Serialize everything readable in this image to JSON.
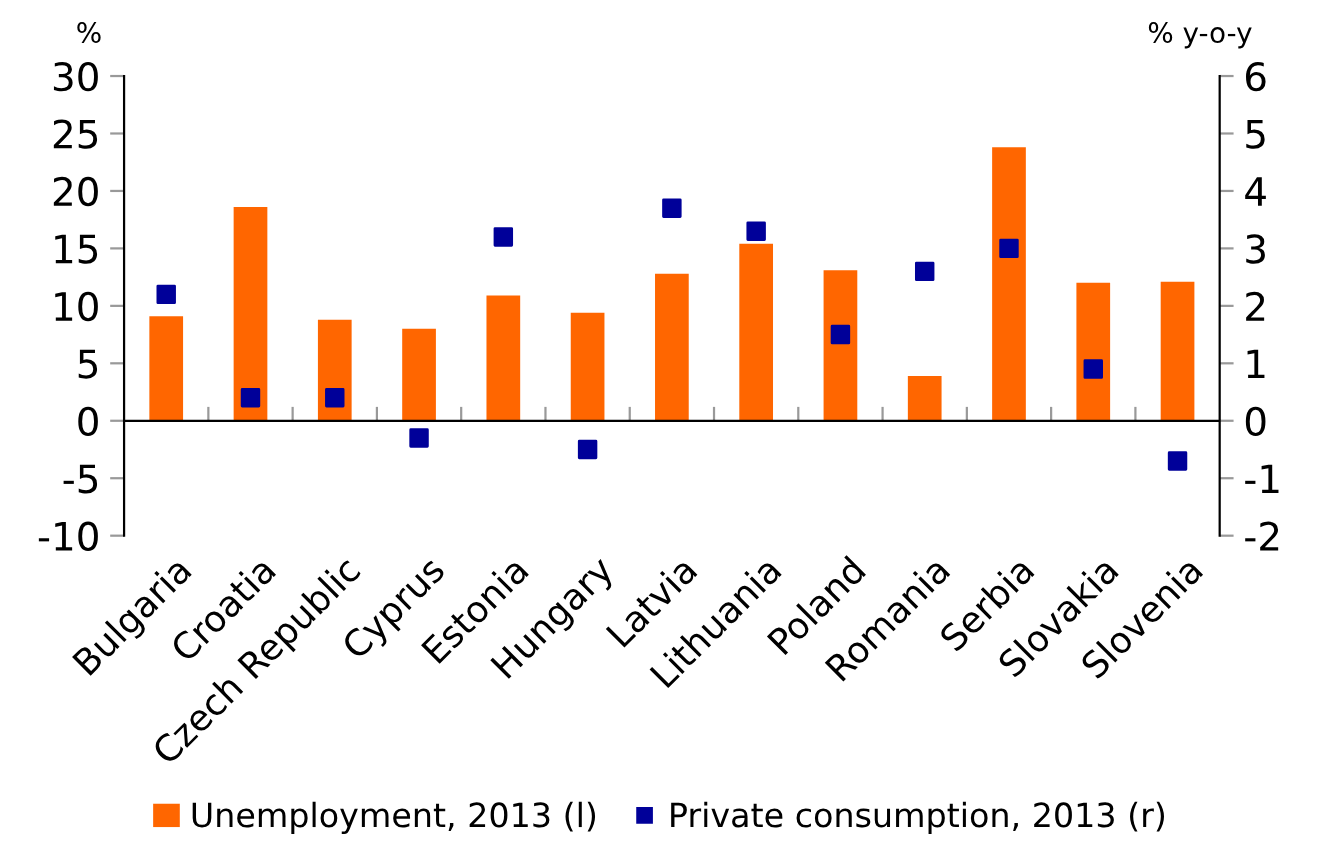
{
  "chart_data": {
    "type": "bar",
    "categories": [
      "Bulgaria",
      "Croatia",
      "Czech Republic",
      "Cyprus",
      "Estonia",
      "Hungary",
      "Latvia",
      "Lithuania",
      "Poland",
      "Romania",
      "Serbia",
      "Slovakia",
      "Slovenia"
    ],
    "series": [
      {
        "name": "Unemployment, 2013 (l)",
        "color": "#ff6600",
        "values": [
          9.1,
          18.6,
          8.8,
          8.0,
          10.9,
          9.4,
          12.8,
          15.4,
          13.1,
          3.9,
          23.8,
          12.0,
          12.1
        ]
      },
      {
        "name": "Private consumption, 2013 (r)",
        "type": "scatter",
        "axis": "y2",
        "color": "#000099",
        "marker": "square",
        "values": [
          2.2,
          0.4,
          0.4,
          -0.3,
          3.2,
          -0.5,
          3.7,
          3.3,
          1.5,
          2.6,
          3.0,
          0.9,
          -0.7
        ]
      }
    ],
    "ylabel": "%",
    "y2label": "% y-o-y",
    "ylim": [
      -10,
      30
    ],
    "yticks": [
      -10,
      -5,
      0,
      5,
      10,
      15,
      20,
      25,
      30
    ],
    "y2lim": [
      -2,
      6
    ],
    "y2ticks": [
      -2,
      -1,
      0,
      1,
      2,
      3,
      4,
      5,
      6
    ],
    "legend": "bottom"
  }
}
